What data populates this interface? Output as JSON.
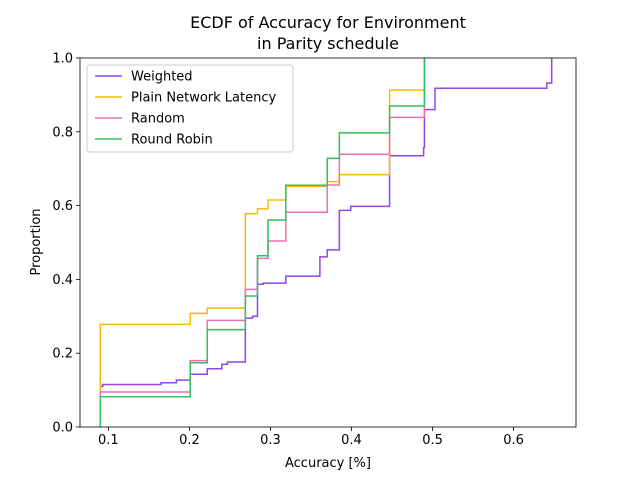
{
  "chart_data": {
    "type": "line",
    "step": "post",
    "title_lines": [
      "ECDF of Accuracy for Environment",
      "in Parity schedule"
    ],
    "xlabel": "Accuracy [%]",
    "ylabel": "Proportion",
    "xlim": [
      0.065,
      0.677
    ],
    "ylim": [
      0.0,
      1.0
    ],
    "xticks": [
      0.1,
      0.2,
      0.3,
      0.4,
      0.5,
      0.6
    ],
    "xtick_labels": [
      "0.1",
      "0.2",
      "0.3",
      "0.4",
      "0.5",
      "0.6"
    ],
    "yticks": [
      0.0,
      0.2,
      0.4,
      0.6,
      0.8,
      1.0
    ],
    "ytick_labels": [
      "0.0",
      "0.2",
      "0.4",
      "0.6",
      "0.8",
      "1.0"
    ],
    "grid": false,
    "legend_position": "top-left",
    "series": [
      {
        "name": "Weighted",
        "color": "#9146ea",
        "points": [
          [
            0.09,
            0.0
          ],
          [
            0.09,
            0.11
          ],
          [
            0.093,
            0.115
          ],
          [
            0.165,
            0.12
          ],
          [
            0.184,
            0.127
          ],
          [
            0.201,
            0.143
          ],
          [
            0.222,
            0.158
          ],
          [
            0.24,
            0.17
          ],
          [
            0.247,
            0.176
          ],
          [
            0.269,
            0.295
          ],
          [
            0.278,
            0.3
          ],
          [
            0.284,
            0.387
          ],
          [
            0.291,
            0.39
          ],
          [
            0.319,
            0.409
          ],
          [
            0.361,
            0.461
          ],
          [
            0.37,
            0.48
          ],
          [
            0.385,
            0.587
          ],
          [
            0.399,
            0.598
          ],
          [
            0.447,
            0.735
          ],
          [
            0.489,
            0.757
          ],
          [
            0.49,
            0.86
          ],
          [
            0.503,
            0.918
          ],
          [
            0.641,
            0.932
          ],
          [
            0.647,
            1.0
          ]
        ],
        "x_end": 0.647
      },
      {
        "name": "Plain Network Latency",
        "color": "#f8b90d",
        "points": [
          [
            0.09,
            0.0
          ],
          [
            0.09,
            0.278
          ],
          [
            0.201,
            0.308
          ],
          [
            0.222,
            0.322
          ],
          [
            0.269,
            0.578
          ],
          [
            0.284,
            0.591
          ],
          [
            0.297,
            0.615
          ],
          [
            0.319,
            0.652
          ],
          [
            0.37,
            0.665
          ],
          [
            0.385,
            0.684
          ],
          [
            0.447,
            0.913
          ],
          [
            0.49,
            1.0
          ]
        ],
        "x_end": 0.49
      },
      {
        "name": "Random",
        "color": "#ef6fb1",
        "points": [
          [
            0.09,
            0.0
          ],
          [
            0.09,
            0.095
          ],
          [
            0.201,
            0.18
          ],
          [
            0.222,
            0.289
          ],
          [
            0.269,
            0.373
          ],
          [
            0.284,
            0.457
          ],
          [
            0.297,
            0.504
          ],
          [
            0.319,
            0.582
          ],
          [
            0.37,
            0.656
          ],
          [
            0.385,
            0.739
          ],
          [
            0.447,
            0.839
          ],
          [
            0.49,
            1.0
          ]
        ],
        "x_end": 0.49
      },
      {
        "name": "Round Robin",
        "color": "#33c061",
        "points": [
          [
            0.09,
            0.0
          ],
          [
            0.09,
            0.082
          ],
          [
            0.201,
            0.174
          ],
          [
            0.222,
            0.264
          ],
          [
            0.269,
            0.355
          ],
          [
            0.284,
            0.464
          ],
          [
            0.297,
            0.561
          ],
          [
            0.319,
            0.655
          ],
          [
            0.37,
            0.728
          ],
          [
            0.385,
            0.797
          ],
          [
            0.447,
            0.87
          ],
          [
            0.49,
            1.0
          ]
        ],
        "x_end": 0.49
      }
    ]
  }
}
